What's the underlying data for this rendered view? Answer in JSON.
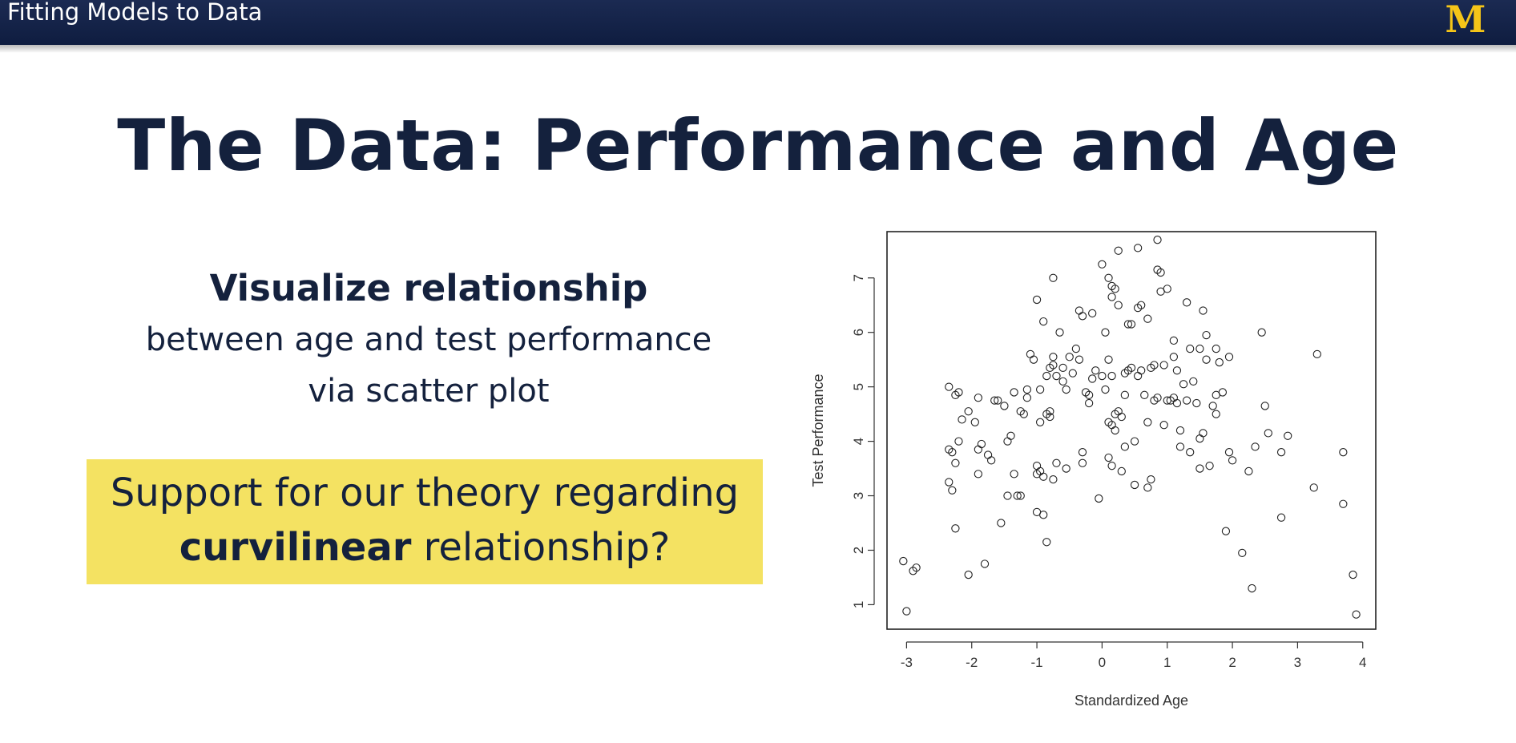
{
  "header": {
    "title": "Fitting Models to Data",
    "logo_text": "M",
    "background_color": "#14244b",
    "logo_color": "#f5c518"
  },
  "slide": {
    "title": "The Data: Performance and Age",
    "subheading": "Visualize relationship",
    "body_line1": "between age and test performance",
    "body_line2": "via scatter plot",
    "callout_line1": "Support for our theory regarding",
    "callout_bold": "curvilinear",
    "callout_rest": " relationship?",
    "callout_color": "#f4e262"
  },
  "chart_data": {
    "type": "scatter",
    "title": "",
    "xlabel": "Standardized Age",
    "ylabel": "Test Performance",
    "xlim": [
      -3.3,
      4.2
    ],
    "ylim": [
      0.55,
      7.85
    ],
    "xticks": [
      -3,
      -2,
      -1,
      0,
      1,
      2,
      3,
      4
    ],
    "yticks": [
      1,
      2,
      3,
      4,
      5,
      6,
      7
    ],
    "marker": "open-circle",
    "grid": false,
    "points": [
      [
        -3.05,
        1.8
      ],
      [
        -3.0,
        0.88
      ],
      [
        -2.9,
        1.62
      ],
      [
        -2.85,
        1.68
      ],
      [
        -2.35,
        5.0
      ],
      [
        -2.35,
        3.85
      ],
      [
        -2.35,
        3.25
      ],
      [
        -2.3,
        3.1
      ],
      [
        -2.3,
        3.8
      ],
      [
        -2.25,
        4.85
      ],
      [
        -2.25,
        3.6
      ],
      [
        -2.25,
        2.4
      ],
      [
        -2.2,
        4.9
      ],
      [
        -2.2,
        4.0
      ],
      [
        -2.15,
        4.4
      ],
      [
        -2.05,
        4.55
      ],
      [
        -2.05,
        1.55
      ],
      [
        -1.95,
        4.35
      ],
      [
        -1.9,
        4.8
      ],
      [
        -1.9,
        3.85
      ],
      [
        -1.9,
        3.4
      ],
      [
        -1.85,
        3.95
      ],
      [
        -1.8,
        1.75
      ],
      [
        -1.75,
        3.75
      ],
      [
        -1.7,
        3.65
      ],
      [
        -1.65,
        4.75
      ],
      [
        -1.6,
        4.75
      ],
      [
        -1.55,
        2.5
      ],
      [
        -1.5,
        4.65
      ],
      [
        -1.45,
        4.0
      ],
      [
        -1.45,
        3.0
      ],
      [
        -1.4,
        4.1
      ],
      [
        -1.35,
        4.9
      ],
      [
        -1.35,
        3.4
      ],
      [
        -1.3,
        3.0
      ],
      [
        -1.25,
        4.55
      ],
      [
        -1.25,
        3.0
      ],
      [
        -1.2,
        4.5
      ],
      [
        -1.15,
        4.8
      ],
      [
        -1.15,
        4.95
      ],
      [
        -1.1,
        5.6
      ],
      [
        -1.05,
        5.5
      ],
      [
        -1.0,
        6.6
      ],
      [
        -1.0,
        3.55
      ],
      [
        -1.0,
        3.4
      ],
      [
        -1.0,
        2.7
      ],
      [
        -0.95,
        4.95
      ],
      [
        -0.95,
        4.35
      ],
      [
        -0.95,
        3.45
      ],
      [
        -0.9,
        6.2
      ],
      [
        -0.9,
        3.35
      ],
      [
        -0.9,
        2.65
      ],
      [
        -0.85,
        5.2
      ],
      [
        -0.85,
        4.5
      ],
      [
        -0.85,
        2.15
      ],
      [
        -0.8,
        5.35
      ],
      [
        -0.8,
        4.55
      ],
      [
        -0.8,
        4.45
      ],
      [
        -0.75,
        7.0
      ],
      [
        -0.75,
        5.55
      ],
      [
        -0.75,
        5.4
      ],
      [
        -0.75,
        3.3
      ],
      [
        -0.7,
        5.2
      ],
      [
        -0.7,
        3.6
      ],
      [
        -0.65,
        6.0
      ],
      [
        -0.6,
        5.35
      ],
      [
        -0.6,
        5.1
      ],
      [
        -0.55,
        4.95
      ],
      [
        -0.55,
        3.5
      ],
      [
        -0.5,
        5.55
      ],
      [
        -0.45,
        5.25
      ],
      [
        -0.4,
        5.7
      ],
      [
        -0.35,
        6.4
      ],
      [
        -0.35,
        5.5
      ],
      [
        -0.3,
        6.3
      ],
      [
        -0.3,
        3.8
      ],
      [
        -0.3,
        3.6
      ],
      [
        -0.25,
        4.9
      ],
      [
        -0.2,
        4.85
      ],
      [
        -0.2,
        4.7
      ],
      [
        -0.15,
        6.35
      ],
      [
        -0.15,
        5.15
      ],
      [
        -0.1,
        5.3
      ],
      [
        -0.05,
        2.95
      ],
      [
        0.0,
        7.25
      ],
      [
        0.0,
        5.2
      ],
      [
        0.05,
        6.0
      ],
      [
        0.05,
        4.95
      ],
      [
        0.1,
        7.0
      ],
      [
        0.1,
        5.5
      ],
      [
        0.1,
        4.35
      ],
      [
        0.1,
        3.7
      ],
      [
        0.15,
        6.85
      ],
      [
        0.15,
        6.65
      ],
      [
        0.15,
        5.2
      ],
      [
        0.15,
        4.3
      ],
      [
        0.15,
        3.55
      ],
      [
        0.2,
        6.8
      ],
      [
        0.2,
        4.5
      ],
      [
        0.2,
        4.2
      ],
      [
        0.25,
        7.5
      ],
      [
        0.25,
        6.5
      ],
      [
        0.25,
        4.55
      ],
      [
        0.3,
        4.45
      ],
      [
        0.3,
        3.45
      ],
      [
        0.35,
        5.25
      ],
      [
        0.35,
        4.85
      ],
      [
        0.35,
        3.9
      ],
      [
        0.4,
        6.15
      ],
      [
        0.4,
        5.3
      ],
      [
        0.45,
        6.15
      ],
      [
        0.45,
        5.35
      ],
      [
        0.5,
        4.0
      ],
      [
        0.5,
        3.2
      ],
      [
        0.55,
        7.55
      ],
      [
        0.55,
        6.45
      ],
      [
        0.55,
        5.2
      ],
      [
        0.6,
        6.5
      ],
      [
        0.6,
        5.3
      ],
      [
        0.65,
        4.85
      ],
      [
        0.7,
        6.25
      ],
      [
        0.7,
        4.35
      ],
      [
        0.7,
        3.15
      ],
      [
        0.75,
        5.35
      ],
      [
        0.75,
        3.3
      ],
      [
        0.8,
        5.4
      ],
      [
        0.8,
        4.75
      ],
      [
        0.85,
        7.7
      ],
      [
        0.85,
        7.15
      ],
      [
        0.85,
        4.8
      ],
      [
        0.9,
        6.75
      ],
      [
        0.9,
        7.1
      ],
      [
        0.95,
        5.4
      ],
      [
        0.95,
        4.3
      ],
      [
        1.0,
        6.8
      ],
      [
        1.0,
        4.75
      ],
      [
        1.05,
        4.75
      ],
      [
        1.1,
        5.85
      ],
      [
        1.1,
        5.55
      ],
      [
        1.1,
        4.8
      ],
      [
        1.15,
        5.3
      ],
      [
        1.15,
        4.7
      ],
      [
        1.2,
        4.2
      ],
      [
        1.2,
        3.9
      ],
      [
        1.25,
        5.05
      ],
      [
        1.3,
        6.55
      ],
      [
        1.3,
        4.75
      ],
      [
        1.35,
        5.7
      ],
      [
        1.35,
        3.8
      ],
      [
        1.4,
        5.1
      ],
      [
        1.45,
        4.7
      ],
      [
        1.5,
        5.7
      ],
      [
        1.5,
        4.05
      ],
      [
        1.5,
        3.5
      ],
      [
        1.55,
        6.4
      ],
      [
        1.55,
        4.15
      ],
      [
        1.6,
        5.95
      ],
      [
        1.6,
        5.5
      ],
      [
        1.65,
        3.55
      ],
      [
        1.7,
        4.65
      ],
      [
        1.75,
        5.7
      ],
      [
        1.75,
        4.85
      ],
      [
        1.75,
        4.5
      ],
      [
        1.8,
        5.45
      ],
      [
        1.85,
        4.9
      ],
      [
        1.9,
        2.35
      ],
      [
        1.95,
        3.8
      ],
      [
        1.95,
        5.55
      ],
      [
        2.0,
        3.65
      ],
      [
        2.15,
        1.95
      ],
      [
        2.25,
        3.45
      ],
      [
        2.3,
        1.3
      ],
      [
        2.35,
        3.9
      ],
      [
        2.45,
        6.0
      ],
      [
        2.5,
        4.65
      ],
      [
        2.55,
        4.15
      ],
      [
        2.75,
        3.8
      ],
      [
        2.75,
        2.6
      ],
      [
        2.85,
        4.1
      ],
      [
        3.25,
        3.15
      ],
      [
        3.3,
        5.6
      ],
      [
        3.7,
        3.8
      ],
      [
        3.7,
        2.85
      ],
      [
        3.85,
        1.55
      ],
      [
        3.9,
        0.82
      ]
    ]
  }
}
